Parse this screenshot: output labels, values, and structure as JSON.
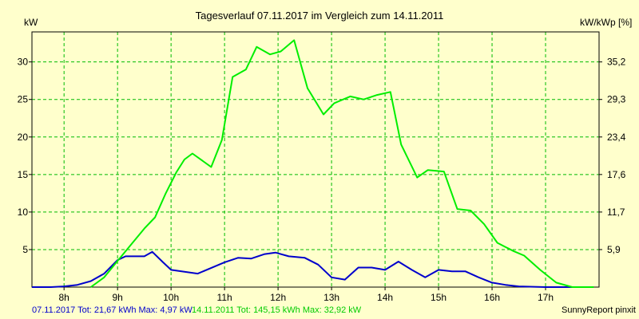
{
  "chart_data": {
    "type": "line",
    "title": "Tagesverlauf 07.11.2017 im Vergleich zum 14.11.2011",
    "y_left_label": "kW",
    "y_right_label": "kW/kWp [%]",
    "ylim": [
      0,
      34
    ],
    "xlim": [
      7.4,
      18.0
    ],
    "grid": true,
    "x_ticks": [
      {
        "value": 8,
        "label": "8h"
      },
      {
        "value": 9,
        "label": "9h"
      },
      {
        "value": 10,
        "label": "10h"
      },
      {
        "value": 11,
        "label": "11h"
      },
      {
        "value": 12,
        "label": "12h"
      },
      {
        "value": 13,
        "label": "13h"
      },
      {
        "value": 14,
        "label": "14h"
      },
      {
        "value": 15,
        "label": "15h"
      },
      {
        "value": 16,
        "label": "16h"
      },
      {
        "value": 17,
        "label": "17h"
      }
    ],
    "y_left_ticks": [
      {
        "value": 5,
        "label": "5"
      },
      {
        "value": 10,
        "label": "10"
      },
      {
        "value": 15,
        "label": "15"
      },
      {
        "value": 20,
        "label": "20"
      },
      {
        "value": 25,
        "label": "25"
      },
      {
        "value": 30,
        "label": "30"
      }
    ],
    "y_right_ticks": [
      {
        "value": 5,
        "label": "5,9"
      },
      {
        "value": 10,
        "label": "11,7"
      },
      {
        "value": 15,
        "label": "17,6"
      },
      {
        "value": 20,
        "label": "23,4"
      },
      {
        "value": 25,
        "label": "29,3"
      },
      {
        "value": 30,
        "label": "35,2"
      }
    ],
    "series": [
      {
        "name": "07.11.2017",
        "color": "#0000cc",
        "points": [
          [
            7.4,
            0
          ],
          [
            7.75,
            0
          ],
          [
            8.0,
            0.1
          ],
          [
            8.25,
            0.3
          ],
          [
            8.5,
            0.8
          ],
          [
            8.75,
            1.8
          ],
          [
            9.0,
            3.6
          ],
          [
            9.15,
            4.1
          ],
          [
            9.5,
            4.1
          ],
          [
            9.65,
            4.7
          ],
          [
            9.85,
            3.3
          ],
          [
            10.0,
            2.3
          ],
          [
            10.5,
            1.8
          ],
          [
            11.0,
            3.3
          ],
          [
            11.25,
            3.9
          ],
          [
            11.5,
            3.8
          ],
          [
            11.75,
            4.4
          ],
          [
            11.95,
            4.6
          ],
          [
            12.2,
            4.1
          ],
          [
            12.5,
            3.9
          ],
          [
            12.75,
            3.0
          ],
          [
            13.0,
            1.3
          ],
          [
            13.25,
            1.0
          ],
          [
            13.5,
            2.6
          ],
          [
            13.75,
            2.6
          ],
          [
            14.0,
            2.3
          ],
          [
            14.25,
            3.4
          ],
          [
            14.5,
            2.3
          ],
          [
            14.75,
            1.3
          ],
          [
            15.0,
            2.3
          ],
          [
            15.25,
            2.1
          ],
          [
            15.5,
            2.1
          ],
          [
            15.75,
            1.3
          ],
          [
            16.0,
            0.6
          ],
          [
            16.25,
            0.3
          ],
          [
            16.5,
            0.1
          ],
          [
            17.0,
            0
          ],
          [
            17.5,
            0
          ]
        ]
      },
      {
        "name": "14.11.2011",
        "color": "#00ee00",
        "points": [
          [
            8.5,
            0
          ],
          [
            8.75,
            1.3
          ],
          [
            9.0,
            3.5
          ],
          [
            9.5,
            7.8
          ],
          [
            9.7,
            9.3
          ],
          [
            9.9,
            12.5
          ],
          [
            10.1,
            15.3
          ],
          [
            10.25,
            17.0
          ],
          [
            10.4,
            17.8
          ],
          [
            10.75,
            16.0
          ],
          [
            10.95,
            19.6
          ],
          [
            11.15,
            28.0
          ],
          [
            11.4,
            29.0
          ],
          [
            11.6,
            32.0
          ],
          [
            11.85,
            31.0
          ],
          [
            12.05,
            31.4
          ],
          [
            12.3,
            32.9
          ],
          [
            12.55,
            26.5
          ],
          [
            12.85,
            23.0
          ],
          [
            13.05,
            24.5
          ],
          [
            13.35,
            25.4
          ],
          [
            13.6,
            25.0
          ],
          [
            13.85,
            25.6
          ],
          [
            14.1,
            26.0
          ],
          [
            14.3,
            19.0
          ],
          [
            14.6,
            14.6
          ],
          [
            14.8,
            15.6
          ],
          [
            15.1,
            15.4
          ],
          [
            15.35,
            10.4
          ],
          [
            15.6,
            10.2
          ],
          [
            15.85,
            8.4
          ],
          [
            16.1,
            5.9
          ],
          [
            16.4,
            4.8
          ],
          [
            16.6,
            4.2
          ],
          [
            16.9,
            2.3
          ],
          [
            17.2,
            0.6
          ],
          [
            17.5,
            0
          ],
          [
            17.9,
            0
          ]
        ]
      }
    ]
  },
  "footer": {
    "series1": "07.11.2017 Tot: 21,67 kWh Max: 4,97 kW",
    "series2": "14.11.2011 Tot: 145,15 kWh Max: 32,92 kW",
    "credit": "SunnyReport pinxit"
  },
  "colors": {
    "background": "#ffffcc",
    "grid": "#00bb00",
    "series1": "#0000cc",
    "series2": "#00ee00"
  }
}
